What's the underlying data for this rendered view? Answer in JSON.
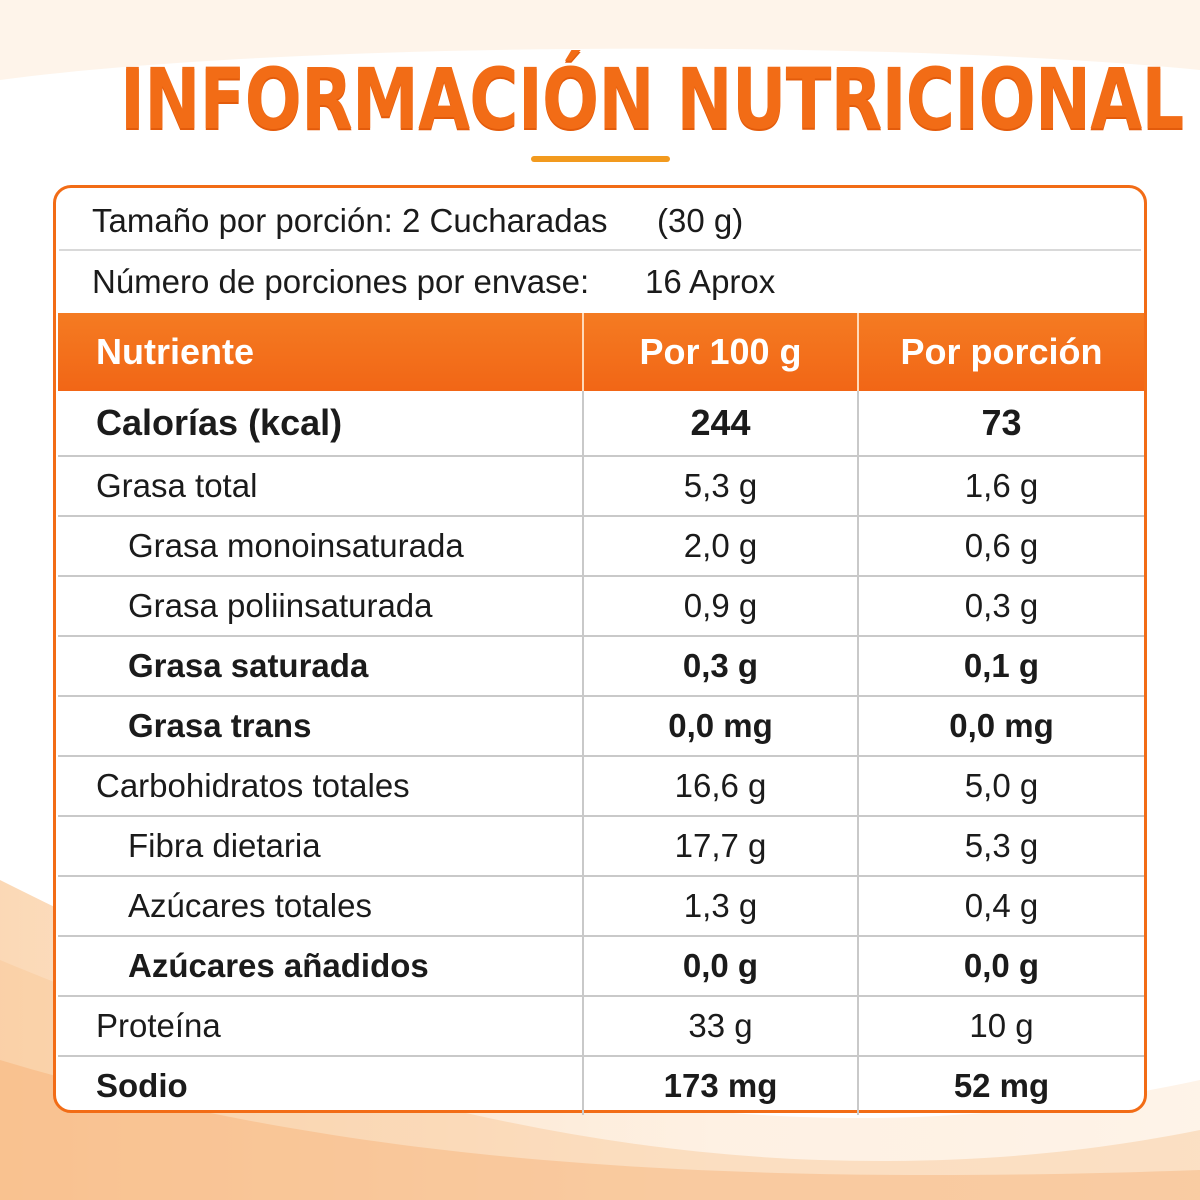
{
  "title": "INFORMACIÓN NUTRICIONAL",
  "serving": {
    "size_label": "Tamaño por porción: 2 Cucharadas",
    "size_value": "(30 g)",
    "count_label": "Número de porciones por envase:",
    "count_value": "16 Aprox"
  },
  "table": {
    "headers": [
      "Nutriente",
      "Por 100 g",
      "Por porción"
    ],
    "rows": [
      {
        "name": "Calorías (kcal)",
        "per100": "244",
        "perServing": "73"
      },
      {
        "name": "Grasa total",
        "per100": "5,3 g",
        "perServing": "1,6 g"
      },
      {
        "name": "Grasa monoinsaturada",
        "per100": "2,0 g",
        "perServing": "0,6 g"
      },
      {
        "name": "Grasa poliinsaturada",
        "per100": "0,9 g",
        "perServing": "0,3 g"
      },
      {
        "name": "Grasa saturada",
        "per100": "0,3 g",
        "perServing": "0,1 g"
      },
      {
        "name": "Grasa trans",
        "per100": "0,0 mg",
        "perServing": "0,0 mg"
      },
      {
        "name": "Carbohidratos totales",
        "per100": "16,6 g",
        "perServing": "5,0 g"
      },
      {
        "name": "Fibra dietaria",
        "per100": "17,7 g",
        "perServing": "5,3 g"
      },
      {
        "name": "Azúcares totales",
        "per100": "1,3 g",
        "perServing": "0,4 g"
      },
      {
        "name": "Azúcares añadidos",
        "per100": "0,0 g",
        "perServing": "0,0 g"
      },
      {
        "name": "Proteína",
        "per100": "33 g",
        "perServing": "10 g"
      },
      {
        "name": "Sodio",
        "per100": "173 mg",
        "perServing": "52 mg"
      }
    ]
  },
  "colors": {
    "accent": "#f26c16",
    "underline": "#f29a1e",
    "text": "#1b1b1b"
  }
}
